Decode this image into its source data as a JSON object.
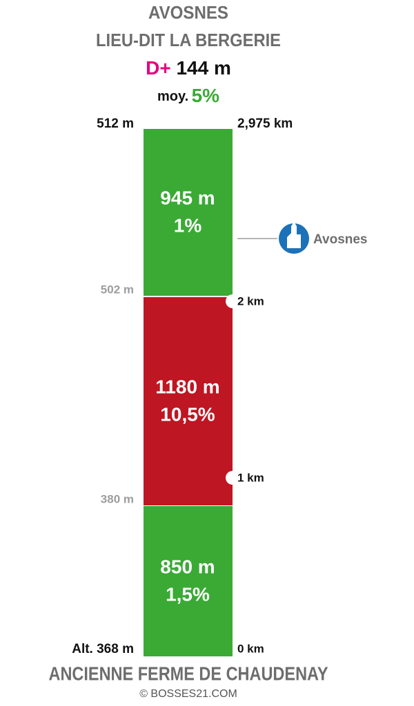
{
  "header": {
    "title_line1": "AVOSNES",
    "title_line2": "LIEU-DIT LA BERGERIE",
    "gain_label": "D+",
    "gain_value": "144 m",
    "avg_label": "moy.",
    "avg_value": "5%"
  },
  "altitudes": [
    "512 m",
    "502 m",
    "380 m",
    "Alt. 368 m"
  ],
  "distances": [
    "2,975 km",
    "2 km",
    "1 km",
    "0 km"
  ],
  "segments": [
    {
      "length": "945 m",
      "grade": "1%",
      "color": "#3aaa35"
    },
    {
      "length": "1180 m",
      "grade": "10,5%",
      "color": "#be1622"
    },
    {
      "length": "850 m",
      "grade": "1,5%",
      "color": "#3aaa35"
    }
  ],
  "poi": {
    "label": "Avosnes"
  },
  "footer": {
    "start": "ANCIENNE FERME DE CHAUDENAY",
    "credit": "© BOSSES21.COM"
  }
}
